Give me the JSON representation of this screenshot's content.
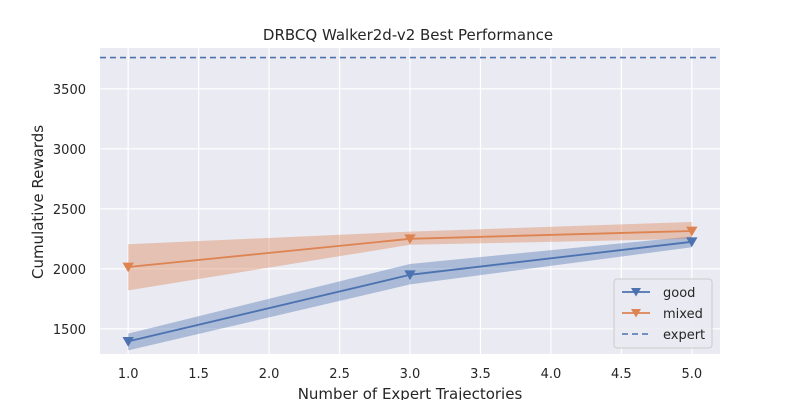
{
  "chart_data": {
    "type": "line",
    "title": "DRBCQ Walker2d-v2 Best Performance",
    "xlabel": "Number of Expert Trajectories",
    "ylabel": "Cumulative Rewards",
    "xlim": [
      0.8,
      5.2
    ],
    "ylim": [
      1290,
      3840
    ],
    "x_ticks": [
      "1.0",
      "1.5",
      "2.0",
      "2.5",
      "3.0",
      "3.5",
      "4.0",
      "4.5",
      "5.0"
    ],
    "y_ticks": [
      "1500",
      "2000",
      "2500",
      "3000",
      "3500"
    ],
    "grid": true,
    "background": "#eaeaf2",
    "legend_position": "lower-right",
    "series": [
      {
        "name": "good",
        "color": "#4c72b0",
        "marker": "triangle-down",
        "x": [
          1.0,
          3.0,
          5.0
        ],
        "y": [
          1395,
          1950,
          2225
        ],
        "band_lower": [
          1320,
          1870,
          2180
        ],
        "band_upper": [
          1460,
          2040,
          2270
        ]
      },
      {
        "name": "mixed",
        "color": "#dd8452",
        "marker": "triangle-down",
        "x": [
          1.0,
          3.0,
          5.0
        ],
        "y": [
          2015,
          2250,
          2315
        ],
        "band_lower": [
          1820,
          2200,
          2250
        ],
        "band_upper": [
          2205,
          2310,
          2390
        ]
      }
    ],
    "reference_lines": [
      {
        "name": "expert",
        "y": 3760,
        "style": "dashed",
        "color": "#4c72b0"
      }
    ]
  }
}
